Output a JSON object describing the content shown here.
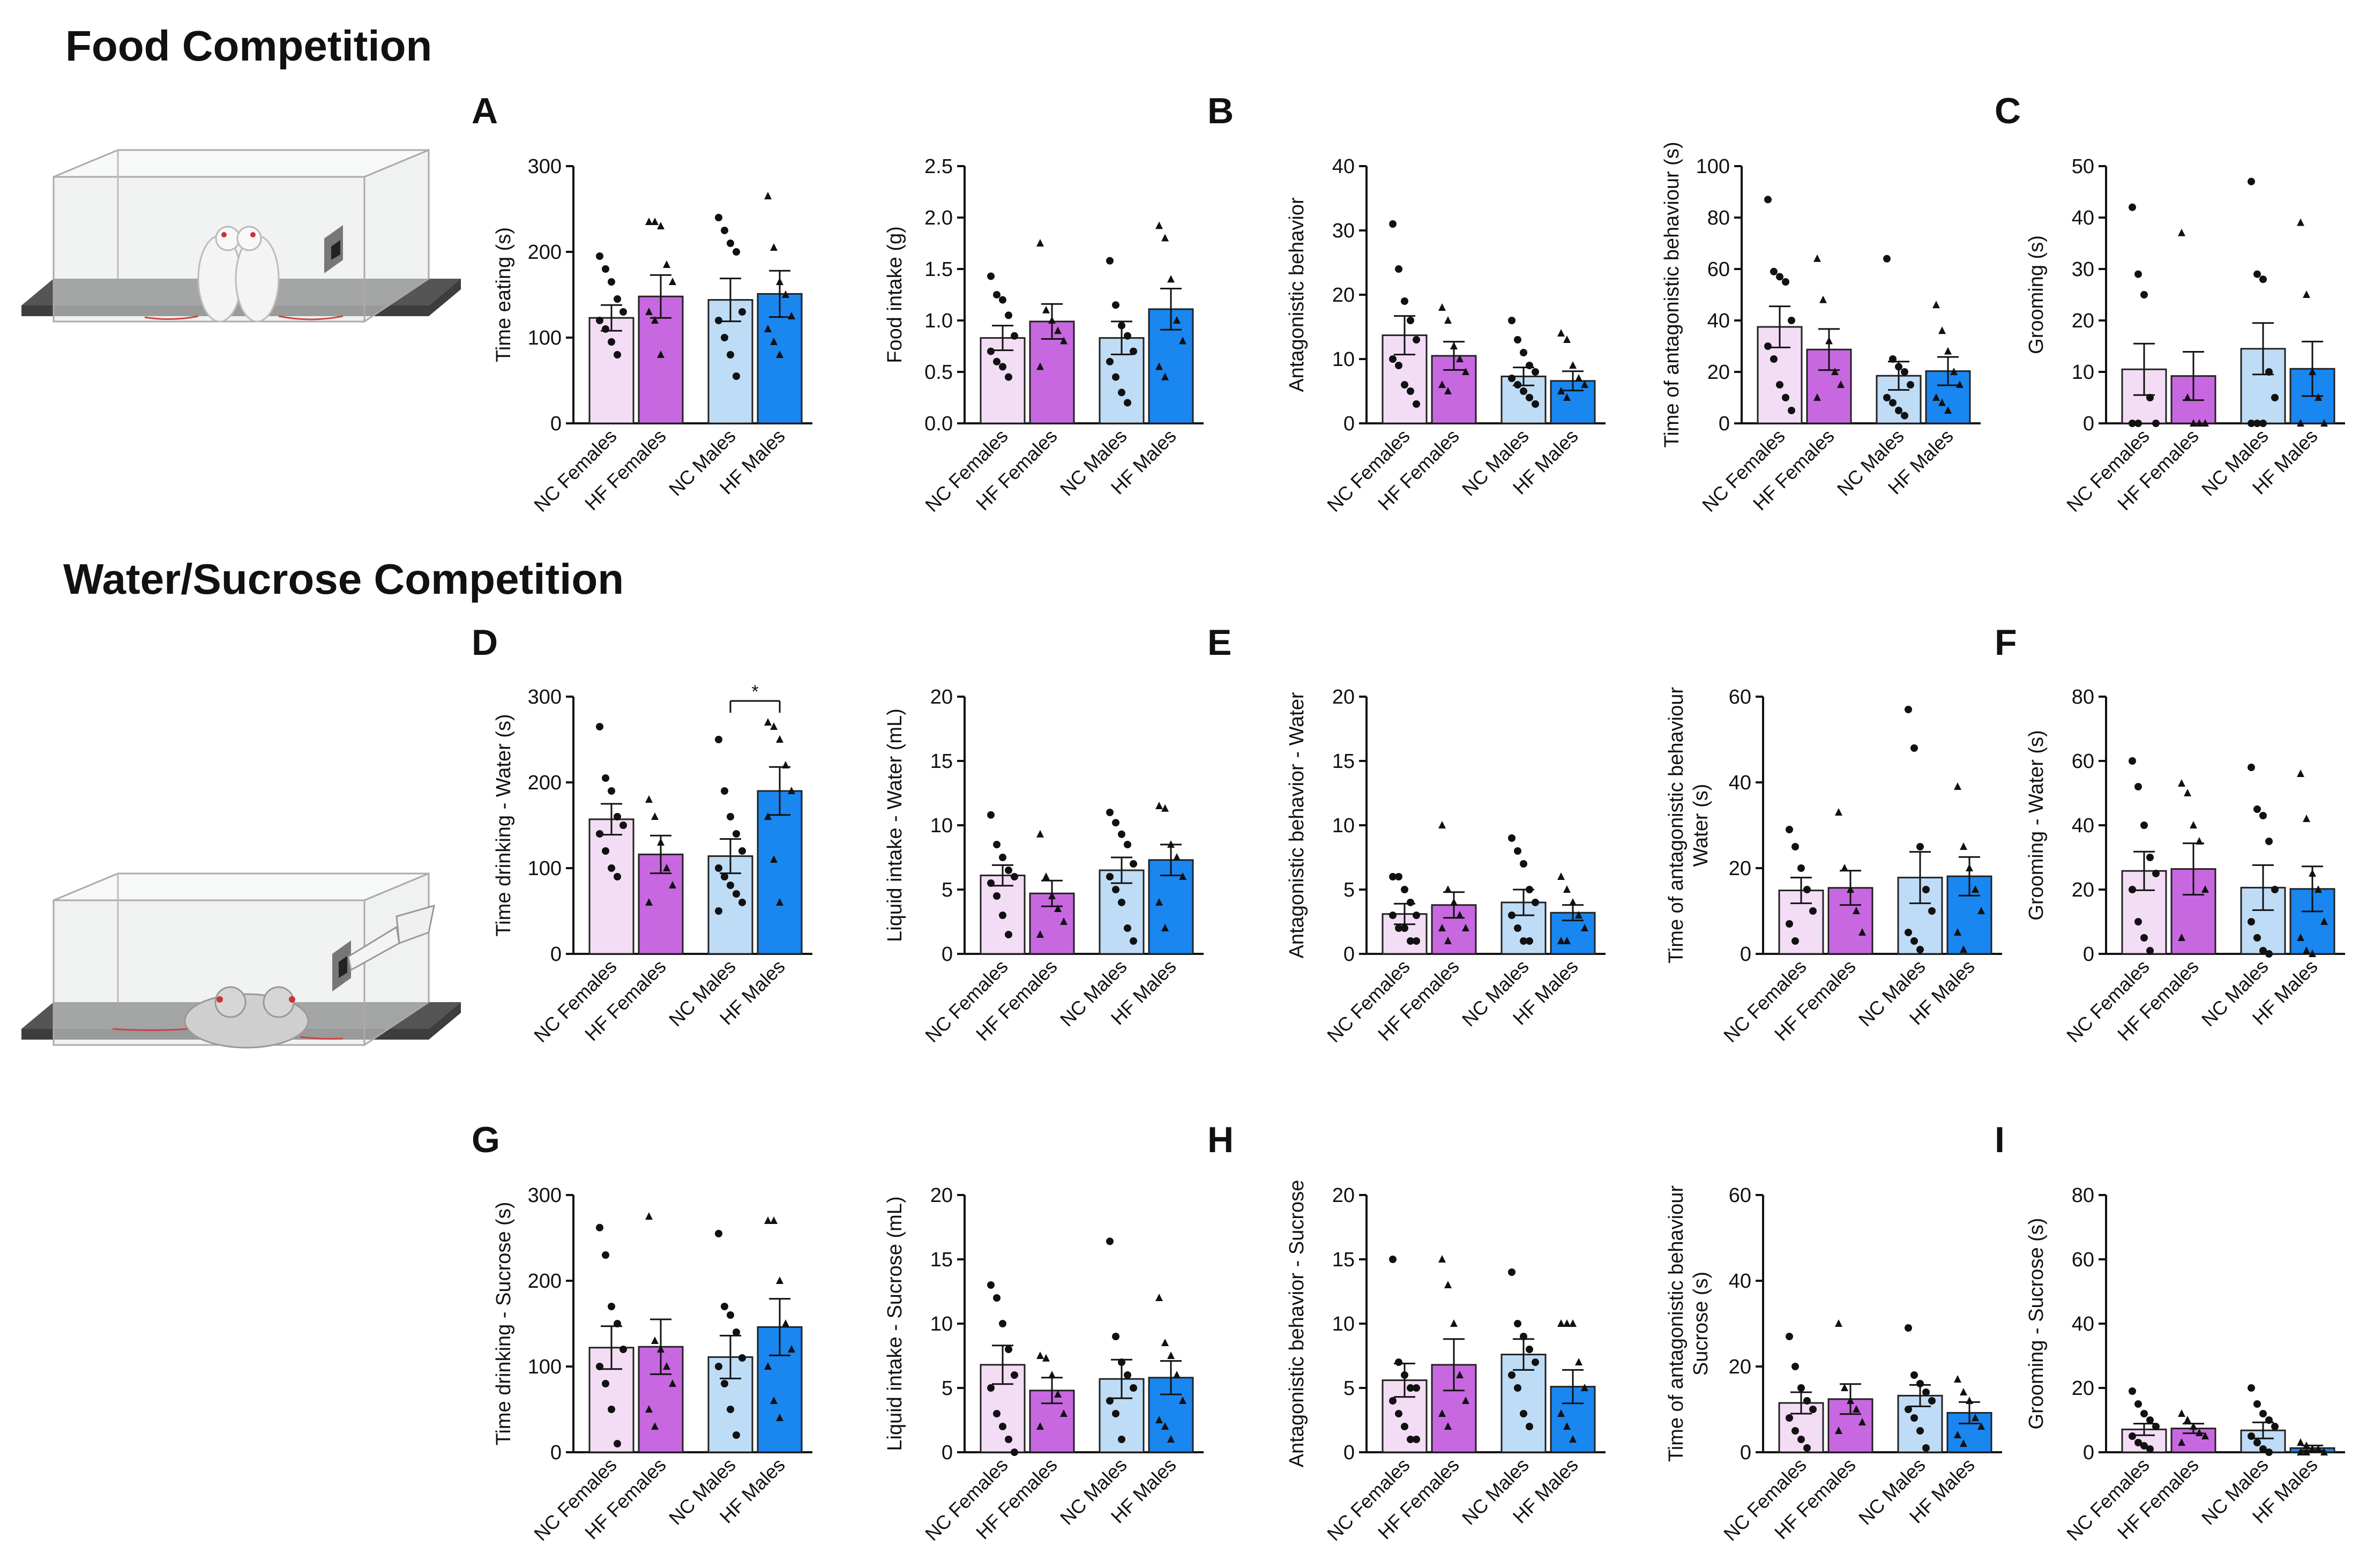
{
  "sections": {
    "food": "Food Competition",
    "water": "Water/Sucrose Competition"
  },
  "panel_letters": [
    "A",
    "B",
    "C",
    "D",
    "E",
    "F",
    "G",
    "H",
    "I"
  ],
  "colors": {
    "NC Females": "#f3ddf5",
    "HF Females": "#c868e0",
    "NC Males": "#bfdcf6",
    "HF Males": "#1a86f0"
  },
  "chart_data": [
    {
      "type": "bar",
      "categories": [
        "NC Females",
        "HF Females",
        "NC Males",
        "HF Males"
      ],
      "values": [
        123,
        148,
        144,
        151
      ],
      "errors": [
        15,
        25,
        25,
        27
      ],
      "ylabel": "Time eating (s)",
      "ylim": [
        0,
        300
      ],
      "yticks": [
        0,
        100,
        200,
        300
      ],
      "points": [
        [
          195,
          180,
          165,
          145,
          130,
          120,
          110,
          95,
          80
        ],
        [
          235,
          235,
          230,
          185,
          165,
          130,
          120,
          80
        ],
        [
          240,
          225,
          210,
          200,
          130,
          120,
          100,
          80,
          55
        ],
        [
          265,
          205,
          165,
          150,
          125,
          110,
          95,
          80
        ]
      ]
    },
    {
      "type": "bar",
      "categories": [
        "NC Females",
        "HF Females",
        "NC Males",
        "HF Males"
      ],
      "values": [
        0.83,
        0.99,
        0.83,
        1.11
      ],
      "errors": [
        0.12,
        0.17,
        0.16,
        0.2
      ],
      "ylabel": "Food intake (g)",
      "ylim": [
        0,
        2.5
      ],
      "yticks": [
        "0.0",
        "0.5",
        "1.0",
        "1.5",
        "2.0",
        "2.5"
      ],
      "points": [
        [
          1.43,
          1.25,
          1.2,
          1.05,
          0.85,
          0.7,
          0.6,
          0.55,
          0.45
        ],
        [
          1.75,
          1.1,
          1.0,
          0.9,
          0.8,
          0.55
        ],
        [
          1.58,
          1.15,
          0.95,
          0.85,
          0.7,
          0.6,
          0.45,
          0.3,
          0.2
        ],
        [
          1.92,
          1.8,
          1.4,
          1.0,
          0.8,
          0.55,
          0.45
        ]
      ]
    },
    {
      "type": "bar",
      "categories": [
        "NC Females",
        "HF Females",
        "NC Males",
        "HF Males"
      ],
      "values": [
        13.7,
        10.5,
        7.3,
        6.6
      ],
      "errors": [
        3.0,
        2.2,
        1.4,
        1.5
      ],
      "ylabel": "Antagonistic behavior",
      "ylim": [
        0,
        40
      ],
      "yticks": [
        0,
        10,
        20,
        30,
        40
      ],
      "points": [
        [
          31,
          24,
          19,
          16,
          13,
          10,
          9,
          6,
          5,
          3
        ],
        [
          18,
          16,
          12,
          10,
          8,
          6,
          5
        ],
        [
          16,
          13,
          11,
          9,
          8,
          7,
          6,
          5,
          4,
          3
        ],
        [
          14,
          13,
          9,
          7,
          6,
          5,
          4
        ]
      ]
    },
    {
      "type": "bar",
      "categories": [
        "NC Females",
        "HF Females",
        "NC Males",
        "HF Males"
      ],
      "values": [
        37.5,
        28.7,
        18.5,
        20.3
      ],
      "errors": [
        8.0,
        8.0,
        5.5,
        5.5
      ],
      "ylabel": "Time of antagonistic behaviour (s)",
      "ylim": [
        0,
        100
      ],
      "yticks": [
        0,
        20,
        40,
        60,
        80,
        100
      ],
      "points": [
        [
          87,
          59,
          57,
          55,
          40,
          30,
          25,
          15,
          10,
          5
        ],
        [
          64,
          48,
          32,
          20,
          15,
          10
        ],
        [
          64,
          25,
          22,
          20,
          15,
          10,
          8,
          5,
          3
        ],
        [
          46,
          36,
          28,
          20,
          15,
          10,
          8,
          5
        ]
      ]
    },
    {
      "type": "bar",
      "categories": [
        "NC Females",
        "HF Females",
        "NC Males",
        "HF Males"
      ],
      "values": [
        10.5,
        9.2,
        14.5,
        10.6
      ],
      "errors": [
        5.0,
        4.7,
        5.0,
        5.3
      ],
      "ylabel": "Grooming (s)",
      "ylim": [
        0,
        50
      ],
      "yticks": [
        0,
        10,
        20,
        30,
        40,
        50
      ],
      "points": [
        [
          42,
          29,
          25,
          5,
          0,
          0,
          0
        ],
        [
          37,
          5,
          0,
          0,
          0
        ],
        [
          47,
          29,
          28,
          10,
          5,
          0,
          0,
          0
        ],
        [
          39,
          25,
          10,
          5,
          0,
          0
        ]
      ]
    },
    {
      "type": "bar",
      "categories": [
        "NC Females",
        "HF Females",
        "NC Males",
        "HF Males"
      ],
      "values": [
        157,
        116,
        114,
        190
      ],
      "errors": [
        18,
        22,
        20,
        28
      ],
      "ylabel": "Time drinking - Water (s)",
      "ylim": [
        0,
        300
      ],
      "yticks": [
        0,
        100,
        200,
        300
      ],
      "significance": {
        "between": [
          "NC Males",
          "HF Males"
        ],
        "label": "*"
      },
      "points": [
        [
          265,
          205,
          190,
          160,
          150,
          140,
          120,
          100,
          90
        ],
        [
          180,
          160,
          130,
          100,
          80,
          60
        ],
        [
          250,
          190,
          160,
          140,
          120,
          100,
          90,
          80,
          70,
          60,
          50
        ],
        [
          270,
          265,
          250,
          220,
          190,
          160,
          110,
          60
        ]
      ]
    },
    {
      "type": "bar",
      "categories": [
        "NC Females",
        "HF Females",
        "NC Males",
        "HF Males"
      ],
      "values": [
        6.1,
        4.7,
        6.5,
        7.3
      ],
      "errors": [
        0.8,
        1.0,
        1.0,
        1.2
      ],
      "ylabel": "Liquid intake - Water (mL)",
      "ylim": [
        0,
        20
      ],
      "yticks": [
        0,
        5,
        10,
        15,
        20
      ],
      "points": [
        [
          10.8,
          8.5,
          7.5,
          6.5,
          6.0,
          5.5,
          4.5,
          3.0,
          1.5
        ],
        [
          9.3,
          6.0,
          4.5,
          3.5,
          2.5,
          1.5
        ],
        [
          11,
          10.2,
          9.3,
          8.5,
          7.0,
          6.0,
          5.0,
          4.0,
          2.0,
          1.0
        ],
        [
          11.5,
          11.3,
          8.5,
          7.5,
          6.0,
          4.0,
          2.0
        ]
      ]
    },
    {
      "type": "bar",
      "categories": [
        "NC Females",
        "HF Females",
        "NC Males",
        "HF Males"
      ],
      "values": [
        3.1,
        3.8,
        4.0,
        3.2
      ],
      "errors": [
        0.8,
        1.0,
        1.0,
        0.6
      ],
      "ylabel": "Antagonistic behavior - Water",
      "ylim": [
        0,
        20
      ],
      "yticks": [
        0,
        5,
        10,
        15,
        20
      ],
      "points": [
        [
          6,
          6,
          5,
          4,
          3,
          3,
          2,
          2,
          1,
          1
        ],
        [
          10,
          5,
          4,
          3,
          2,
          2,
          1
        ],
        [
          9,
          8,
          7,
          5,
          4,
          3,
          2,
          1,
          1
        ],
        [
          6,
          5,
          4,
          3,
          2,
          1,
          1
        ]
      ]
    },
    {
      "type": "bar",
      "categories": [
        "NC Females",
        "HF Females",
        "NC Males",
        "HF Males"
      ],
      "values": [
        14.8,
        15.4,
        17.8,
        18.1
      ],
      "errors": [
        3.0,
        4.0,
        6.0,
        4.5
      ],
      "ylabel": [
        "Time of antagonistic behaviour",
        "Water (s)"
      ],
      "ylim": [
        0,
        60
      ],
      "yticks": [
        0,
        20,
        40,
        60
      ],
      "points": [
        [
          29,
          25,
          20,
          15,
          10,
          7,
          3
        ],
        [
          33,
          20,
          15,
          10,
          5
        ],
        [
          57,
          48,
          25,
          15,
          10,
          5,
          3,
          1
        ],
        [
          39,
          25,
          20,
          15,
          10,
          5,
          1
        ]
      ]
    },
    {
      "type": "bar",
      "categories": [
        "NC Females",
        "HF Females",
        "NC Males",
        "HF Males"
      ],
      "values": [
        25.8,
        26.4,
        20.6,
        20.2
      ],
      "errors": [
        6.0,
        8.0,
        7.0,
        7.0
      ],
      "ylabel": "Grooming - Water (s)",
      "ylim": [
        0,
        80
      ],
      "yticks": [
        0,
        20,
        40,
        60,
        80
      ],
      "points": [
        [
          60,
          52,
          40,
          30,
          25,
          20,
          10,
          5,
          1
        ],
        [
          53,
          50,
          40,
          35,
          20,
          5
        ],
        [
          58,
          45,
          43,
          35,
          20,
          10,
          5,
          1,
          0
        ],
        [
          56,
          42,
          25,
          20,
          10,
          5,
          1,
          0
        ]
      ]
    },
    {
      "type": "bar",
      "categories": [
        "NC Females",
        "HF Females",
        "NC Males",
        "HF Males"
      ],
      "values": [
        122,
        123,
        111,
        146
      ],
      "errors": [
        25,
        32,
        25,
        33
      ],
      "ylabel": "Time drinking - Sucrose (s)",
      "ylim": [
        0,
        300
      ],
      "yticks": [
        0,
        100,
        200,
        300
      ],
      "points": [
        [
          262,
          230,
          170,
          150,
          120,
          100,
          80,
          50,
          10
        ],
        [
          275,
          130,
          120,
          100,
          80,
          50,
          30
        ],
        [
          255,
          170,
          160,
          140,
          110,
          100,
          80,
          50,
          20
        ],
        [
          270,
          270,
          200,
          150,
          120,
          100,
          60,
          40
        ]
      ]
    },
    {
      "type": "bar",
      "categories": [
        "NC Females",
        "HF Females",
        "NC Males",
        "HF Males"
      ],
      "values": [
        6.8,
        4.8,
        5.7,
        5.8
      ],
      "errors": [
        1.5,
        1.0,
        1.5,
        1.3
      ],
      "ylabel": "Liquid intake - Sucrose (mL)",
      "ylim": [
        0,
        20
      ],
      "yticks": [
        0,
        5,
        10,
        15,
        20
      ],
      "points": [
        [
          13,
          12,
          10,
          8,
          6,
          5,
          3,
          2,
          1,
          0
        ],
        [
          7.5,
          7.3,
          6.0,
          4.5,
          3.0,
          2.0
        ],
        [
          16.4,
          9.0,
          7.0,
          6.0,
          5.0,
          4.0,
          3.0,
          1.0
        ],
        [
          12,
          8.5,
          7.5,
          6.0,
          4.0,
          2.5,
          2.0,
          1.0
        ]
      ]
    },
    {
      "type": "bar",
      "categories": [
        "NC Females",
        "HF Females",
        "NC Males",
        "HF Males"
      ],
      "values": [
        5.6,
        6.8,
        7.6,
        5.1
      ],
      "errors": [
        1.3,
        2.0,
        1.2,
        1.3
      ],
      "ylabel": "Antagonistic behavior - Sucrose",
      "ylim": [
        0,
        20
      ],
      "yticks": [
        0,
        5,
        10,
        15,
        20
      ],
      "points": [
        [
          15,
          7,
          6,
          5,
          5,
          4,
          3,
          2,
          1,
          1
        ],
        [
          15,
          13,
          10,
          6,
          4,
          3,
          2
        ],
        [
          14,
          10,
          9,
          8,
          7,
          6,
          5,
          3,
          2
        ],
        [
          10,
          10,
          10,
          7,
          5,
          3,
          2,
          1
        ]
      ]
    },
    {
      "type": "bar",
      "categories": [
        "NC Females",
        "HF Females",
        "NC Males",
        "HF Males"
      ],
      "values": [
        11.5,
        12.4,
        13.2,
        9.2
      ],
      "errors": [
        2.5,
        3.5,
        2.5,
        2.5
      ],
      "ylabel": [
        "Time of antagonistic behaviour",
        "Sucrose (s)"
      ],
      "ylim": [
        0,
        60
      ],
      "yticks": [
        0,
        20,
        40,
        60
      ],
      "points": [
        [
          27,
          20,
          15,
          12,
          10,
          8,
          5,
          3,
          1
        ],
        [
          30,
          15,
          12,
          10,
          7,
          5
        ],
        [
          29,
          18,
          16,
          14,
          12,
          10,
          8,
          5,
          1
        ],
        [
          17,
          14,
          12,
          8,
          6,
          4,
          2
        ]
      ]
    },
    {
      "type": "bar",
      "categories": [
        "NC Females",
        "HF Females",
        "NC Males",
        "HF Males"
      ],
      "values": [
        7.1,
        7.4,
        6.8,
        1.3
      ],
      "errors": [
        1.8,
        1.5,
        2.5,
        0.8
      ],
      "ylabel": "Grooming - Sucrose (s)",
      "ylim": [
        0,
        80
      ],
      "yticks": [
        0,
        20,
        40,
        60,
        80
      ],
      "points": [
        [
          19,
          15,
          12,
          10,
          8,
          5,
          3,
          2,
          1
        ],
        [
          12,
          10,
          8,
          6,
          5,
          3
        ],
        [
          20,
          15,
          12,
          10,
          8,
          5,
          3,
          1,
          0
        ],
        [
          3,
          2,
          1,
          1,
          0,
          0,
          0
        ]
      ]
    }
  ]
}
